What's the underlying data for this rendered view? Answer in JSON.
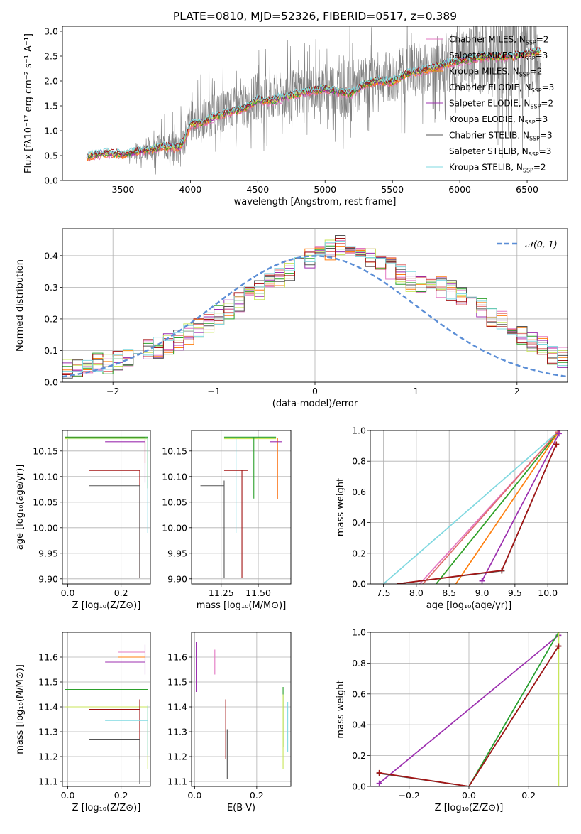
{
  "figure_title": "PLATE=0810, MJD=52326, FIBERID=0517, z=0.389",
  "colors": {
    "Chabrier MILES": "#e377c2",
    "Salpeter MILES": "#e06b6b",
    "Kroupa MILES": "#ff7f0e",
    "Chabrier ELODIE": "#2ca02c",
    "Salpeter ELODIE": "#9c2faf",
    "Kroupa ELODIE": "#c8e65a",
    "Chabrier STELIB": "#555555",
    "Salpeter STELIB": "#a31515",
    "Kroupa STELIB": "#7fd8e0",
    "data": "#808080",
    "normal": "#5b8ed6"
  },
  "chart_data": [
    {
      "id": "spectrum",
      "type": "line",
      "title": "PLATE=0810, MJD=52326, FIBERID=0517, z=0.389",
      "xlabel": "wavelength [Angstrom, rest frame]",
      "ylabel": "Flux [fλ10⁻¹⁷ erg cm⁻² s⁻¹ A⁻¹]",
      "xlim": [
        3050,
        6800
      ],
      "ylim": [
        0,
        3.1
      ],
      "xticks": [
        3500,
        4000,
        4500,
        5000,
        5500,
        6000,
        6500
      ],
      "yticks": [
        0.0,
        0.5,
        1.0,
        1.5,
        2.0,
        2.5,
        3.0
      ],
      "grid": false,
      "legend_position": "top-right",
      "data_series": {
        "name": "data",
        "x": [
          3230,
          3300,
          3400,
          3500,
          3600,
          3700,
          3800,
          3900,
          3950,
          4000,
          4100,
          4200,
          4300,
          4400,
          4500,
          4600,
          4700,
          4800,
          4900,
          5000,
          5100,
          5200,
          5300,
          5400,
          5500,
          5600,
          5700,
          5800,
          5900,
          6000,
          6100,
          6200,
          6300,
          6400,
          6500,
          6600
        ],
        "y": [
          0.45,
          0.52,
          0.55,
          0.5,
          0.6,
          0.62,
          0.7,
          0.65,
          0.8,
          1.2,
          1.25,
          1.35,
          1.45,
          1.5,
          1.7,
          1.65,
          1.7,
          1.8,
          1.85,
          1.9,
          1.85,
          1.8,
          2.0,
          2.1,
          2.05,
          2.2,
          2.25,
          2.3,
          2.4,
          2.45,
          2.5,
          2.55,
          2.5,
          2.55,
          2.6,
          2.65
        ],
        "noise": [
          0.05,
          0.05,
          0.05,
          0.08,
          0.25,
          0.3,
          0.4,
          0.5,
          0.5,
          0.6,
          0.6,
          0.6,
          0.6,
          0.6,
          0.7,
          0.7,
          0.7,
          0.7,
          0.7,
          0.7,
          0.8,
          0.9,
          0.7,
          0.7,
          0.8,
          0.8,
          0.8,
          0.8,
          0.9,
          1.0,
          1.1,
          1.2,
          1.3,
          1.4,
          1.4,
          1.4
        ]
      },
      "model_curve": {
        "x": [
          3230,
          3300,
          3400,
          3500,
          3600,
          3700,
          3800,
          3900,
          3950,
          4000,
          4100,
          4200,
          4300,
          4400,
          4500,
          4600,
          4700,
          4800,
          4900,
          5000,
          5100,
          5200,
          5300,
          5400,
          5500,
          5600,
          5700,
          5800,
          5900,
          6000,
          6100,
          6200,
          6300,
          6400,
          6500,
          6600
        ],
        "y": [
          0.48,
          0.52,
          0.55,
          0.52,
          0.58,
          0.62,
          0.68,
          0.65,
          0.78,
          1.12,
          1.18,
          1.3,
          1.38,
          1.45,
          1.62,
          1.6,
          1.68,
          1.75,
          1.8,
          1.85,
          1.78,
          1.75,
          1.95,
          2.0,
          1.98,
          2.15,
          2.2,
          2.25,
          2.35,
          2.4,
          2.45,
          2.5,
          2.48,
          2.5,
          2.55,
          2.6
        ]
      },
      "legend": [
        {
          "name": "Chabrier MILES, N_SSP=2",
          "model": "Chabrier MILES",
          "base": "Chabrier MILES, N",
          "sub": "SSP",
          "tail": "=2"
        },
        {
          "name": "Salpeter MILES, N_SSP=3",
          "model": "Salpeter MILES",
          "base": "Salpeter MILES, N",
          "sub": "SSP",
          "tail": "=3"
        },
        {
          "name": "Kroupa MILES, N_SSP=2",
          "model": "Kroupa MILES",
          "base": "Kroupa MILES, N",
          "sub": "SSP",
          "tail": "=2"
        },
        {
          "name": "Chabrier ELODIE, N_SSP=3",
          "model": "Chabrier ELODIE",
          "base": "Chabrier ELODIE, N",
          "sub": "SSP",
          "tail": "=3"
        },
        {
          "name": "Salpeter ELODIE, N_SSP=2",
          "model": "Salpeter ELODIE",
          "base": "Salpeter ELODIE, N",
          "sub": "SSP",
          "tail": "=2"
        },
        {
          "name": "Kroupa ELODIE, N_SSP=3",
          "model": "Kroupa ELODIE",
          "base": "Kroupa ELODIE, N",
          "sub": "SSP",
          "tail": "=3"
        },
        {
          "name": "Chabrier STELIB, N_SSP=3",
          "model": "Chabrier STELIB",
          "base": "Chabrier STELIB, N",
          "sub": "SSP",
          "tail": "=3"
        },
        {
          "name": "Salpeter STELIB, N_SSP=3",
          "model": "Salpeter STELIB",
          "base": "Salpeter STELIB, N",
          "sub": "SSP",
          "tail": "=3"
        },
        {
          "name": "Kroupa STELIB, N_SSP=2",
          "model": "Kroupa STELIB",
          "base": "Kroupa STELIB, N",
          "sub": "SSP",
          "tail": "=2"
        }
      ]
    },
    {
      "id": "residuals",
      "type": "line",
      "xlabel": "(data-model)/error",
      "ylabel": "Normed distribution",
      "xlim": [
        -2.5,
        2.5
      ],
      "ylim": [
        0,
        0.485
      ],
      "xticks": [
        -2,
        -1,
        0,
        1,
        2
      ],
      "yticks": [
        0.0,
        0.1,
        0.2,
        0.3,
        0.4
      ],
      "grid": true,
      "legend_position": "top-right",
      "normal_legend": "𝒩(0, 1)",
      "bin_edges_start": -2.5,
      "bin_width": 0.1,
      "histogram_envelope": [
        0.04,
        0.04,
        0.05,
        0.06,
        0.06,
        0.07,
        0.08,
        0.09,
        0.1,
        0.11,
        0.12,
        0.13,
        0.15,
        0.17,
        0.19,
        0.21,
        0.23,
        0.25,
        0.27,
        0.29,
        0.31,
        0.33,
        0.35,
        0.37,
        0.39,
        0.41,
        0.42,
        0.43,
        0.42,
        0.41,
        0.4,
        0.38,
        0.36,
        0.34,
        0.32,
        0.31,
        0.3,
        0.3,
        0.29,
        0.27,
        0.25,
        0.23,
        0.21,
        0.19,
        0.17,
        0.15,
        0.13,
        0.11,
        0.09,
        0.08
      ]
    },
    {
      "id": "age-vs-Z",
      "type": "scatter",
      "xlabel": "Z [log₁₀(Z/Z⊙)]",
      "ylabel": "age  [log₁₀(age/yr)]",
      "xlim": [
        -0.02,
        0.31
      ],
      "ylim": [
        9.89,
        10.19
      ],
      "xticks": [
        0.0,
        0.2
      ],
      "yticks": [
        9.9,
        9.95,
        10.0,
        10.05,
        10.1,
        10.15
      ],
      "grid": true,
      "points": [
        {
          "model": "Chabrier MILES",
          "x": 0.29,
          "y": 10.176,
          "xerr": [
            0.3,
            0.0
          ],
          "yerr": [
            0.05,
            0.0
          ]
        },
        {
          "model": "Kroupa MILES",
          "x": 0.29,
          "y": 10.176,
          "xerr": [
            0.3,
            0.0
          ],
          "yerr": [
            0.05,
            0.0
          ]
        },
        {
          "model": "Chabrier ELODIE",
          "x": 0.3,
          "y": 10.177,
          "xerr": [
            0.31,
            0.0
          ],
          "yerr": [
            0.1,
            0.0
          ]
        },
        {
          "model": "Kroupa ELODIE",
          "x": 0.3,
          "y": 10.174,
          "xerr": [
            0.31,
            0.0
          ],
          "yerr": [
            0.08,
            0.0
          ]
        },
        {
          "model": "Salpeter ELODIE",
          "x": 0.29,
          "y": 10.168,
          "xerr": [
            0.15,
            0.0
          ],
          "yerr": [
            0.08,
            0.0
          ]
        },
        {
          "model": "Kroupa STELIB",
          "x": 0.3,
          "y": 10.175,
          "xerr": [
            0.3,
            0.0
          ],
          "yerr": [
            0.185,
            0.0
          ]
        },
        {
          "model": "Salpeter STELIB",
          "x": 0.27,
          "y": 10.112,
          "xerr": [
            0.19,
            0.0
          ],
          "yerr": [
            0.21,
            0.0
          ]
        },
        {
          "model": "Chabrier STELIB",
          "x": 0.27,
          "y": 10.082,
          "xerr": [
            0.19,
            0.0
          ],
          "yerr": [
            0.18,
            0.0
          ]
        }
      ]
    },
    {
      "id": "age-vs-mass",
      "type": "scatter",
      "xlabel": "mass [log₁₀(M/M⊙)]",
      "ylabel": "",
      "xlim": [
        11.05,
        11.72
      ],
      "ylim": [
        9.89,
        10.19
      ],
      "xticks": [
        11.25,
        11.5
      ],
      "yticks": [
        9.9,
        9.95,
        10.0,
        10.05,
        10.1,
        10.15
      ],
      "grid": true,
      "points": [
        {
          "model": "Kroupa ELODIE",
          "x": 11.62,
          "y": 10.174,
          "xerr": [
            0.35,
            0.0
          ],
          "yerr": [
            0.0,
            0.0
          ]
        },
        {
          "model": "Chabrier ELODIE",
          "x": 11.47,
          "y": 10.177,
          "xerr": [
            0.2,
            0.15
          ],
          "yerr": [
            0.12,
            0.0
          ]
        },
        {
          "model": "Chabrier MILES",
          "x": 11.63,
          "y": 10.176,
          "xerr": [
            0.0,
            0.0
          ],
          "yerr": [
            0.12,
            0.0
          ]
        },
        {
          "model": "Kroupa MILES",
          "x": 11.63,
          "y": 10.176,
          "xerr": [
            0.0,
            0.0
          ],
          "yerr": [
            0.12,
            0.0
          ]
        },
        {
          "model": "Salpeter ELODIE",
          "x": 11.58,
          "y": 10.168,
          "xerr": [
            0.0,
            0.08
          ],
          "yerr": [
            0.0,
            0.0
          ]
        },
        {
          "model": "Kroupa STELIB",
          "x": 11.35,
          "y": 10.175,
          "xerr": [
            0.0,
            0.0
          ],
          "yerr": [
            0.185,
            0.0
          ]
        },
        {
          "model": "Salpeter STELIB",
          "x": 11.39,
          "y": 10.112,
          "xerr": [
            0.12,
            0.04
          ],
          "yerr": [
            0.21,
            0.0
          ]
        },
        {
          "model": "Chabrier STELIB",
          "x": 11.27,
          "y": 10.082,
          "xerr": [
            0.16,
            0.0
          ],
          "yerr": [
            0.18,
            0.01
          ]
        }
      ]
    },
    {
      "id": "weight-vs-age",
      "type": "line",
      "xlabel": "age  [log₁₀(age/yr)]",
      "ylabel": "mass weight",
      "xlim": [
        7.3,
        10.3
      ],
      "ylim": [
        0,
        1.0
      ],
      "xticks": [
        7.5,
        8.0,
        8.5,
        9.0,
        9.5,
        10.0
      ],
      "yticks": [
        0.0,
        0.2,
        0.4,
        0.6,
        0.8,
        1.0
      ],
      "grid": true,
      "series": [
        {
          "model": "Kroupa STELIB",
          "x": [
            7.5,
            10.18
          ],
          "y": [
            0.0,
            1.0
          ],
          "marker": false
        },
        {
          "model": "Chabrier MILES",
          "x": [
            8.05,
            10.18
          ],
          "y": [
            0.0,
            1.0
          ],
          "marker": false
        },
        {
          "model": "Salpeter MILES",
          "x": [
            8.1,
            10.15
          ],
          "y": [
            0.0,
            0.99
          ],
          "marker": true
        },
        {
          "model": "Kroupa ELODIE",
          "x": [
            8.3,
            10.18
          ],
          "y": [
            0.0,
            1.0
          ],
          "marker": false
        },
        {
          "model": "Chabrier ELODIE",
          "x": [
            8.3,
            10.18
          ],
          "y": [
            0.0,
            1.0
          ],
          "marker": false
        },
        {
          "model": "Kroupa MILES",
          "x": [
            8.6,
            10.18
          ],
          "y": [
            0.0,
            1.0
          ],
          "marker": false
        },
        {
          "model": "Salpeter ELODIE",
          "x": [
            9.0,
            10.17
          ],
          "y": [
            0.02,
            0.98
          ],
          "marker": true
        },
        {
          "model": "Chabrier STELIB",
          "x": [
            7.7,
            9.3,
            10.13
          ],
          "y": [
            0.0,
            0.085,
            0.91
          ],
          "marker": true
        },
        {
          "model": "Salpeter STELIB",
          "x": [
            7.7,
            9.3,
            10.13
          ],
          "y": [
            0.0,
            0.088,
            0.91
          ],
          "marker": true
        }
      ]
    },
    {
      "id": "mass-vs-Z",
      "type": "scatter",
      "xlabel": "Z [log₁₀(Z/Z⊙)]",
      "ylabel": "mass [log₁₀(M/M⊙)]",
      "xlim": [
        -0.02,
        0.31
      ],
      "ylim": [
        11.08,
        11.7
      ],
      "xticks": [
        0.0,
        0.2
      ],
      "yticks": [
        11.1,
        11.2,
        11.3,
        11.4,
        11.5,
        11.6
      ],
      "grid": true,
      "points": [
        {
          "model": "Salpeter ELODIE",
          "x": 0.29,
          "y": 11.58,
          "xerr": [
            0.15,
            0.0
          ],
          "yerr": [
            0.05,
            0.07
          ]
        },
        {
          "model": "Kroupa MILES",
          "x": 0.29,
          "y": 11.6,
          "xerr": [
            0.1,
            0.0
          ],
          "yerr": [
            0.0,
            0.0
          ]
        },
        {
          "model": "Chabrier MILES",
          "x": 0.29,
          "y": 11.62,
          "xerr": [
            0.1,
            0.0
          ],
          "yerr": [
            0.0,
            0.0
          ]
        },
        {
          "model": "Chabrier ELODIE",
          "x": 0.3,
          "y": 11.47,
          "xerr": [
            0.31,
            0.0
          ],
          "yerr": [
            0.0,
            0.0
          ]
        },
        {
          "model": "Kroupa ELODIE",
          "x": 0.3,
          "y": 11.4,
          "xerr": [
            0.31,
            0.0
          ],
          "yerr": [
            0.25,
            0.0
          ]
        },
        {
          "model": "Salpeter STELIB",
          "x": 0.27,
          "y": 11.39,
          "xerr": [
            0.19,
            0.0
          ],
          "yerr": [
            0.2,
            0.04
          ]
        },
        {
          "model": "Kroupa STELIB",
          "x": 0.3,
          "y": 11.345,
          "xerr": [
            0.16,
            0.0
          ],
          "yerr": [
            0.14,
            0.06
          ]
        },
        {
          "model": "Chabrier STELIB",
          "x": 0.27,
          "y": 11.27,
          "xerr": [
            0.19,
            0.0
          ],
          "yerr": [
            0.18,
            0.0
          ]
        }
      ]
    },
    {
      "id": "mass-vs-EBV",
      "type": "scatter",
      "xlabel": "E(B-V)",
      "ylabel": "",
      "xlim": [
        -0.01,
        0.31
      ],
      "ylim": [
        11.08,
        11.7
      ],
      "xticks": [
        0.0,
        0.2
      ],
      "yticks": [
        11.1,
        11.2,
        11.3,
        11.4,
        11.5,
        11.6
      ],
      "grid": true,
      "points": [
        {
          "model": "Salpeter ELODIE",
          "x": 0.005,
          "y": 11.56,
          "yerr": [
            0.1,
            0.1
          ]
        },
        {
          "model": "Chabrier MILES",
          "x": 0.065,
          "y": 11.58,
          "yerr": [
            0.05,
            0.05
          ]
        },
        {
          "model": "Salpeter STELIB",
          "x": 0.1,
          "y": 11.31,
          "yerr": [
            0.12,
            0.12
          ]
        },
        {
          "model": "Chabrier STELIB",
          "x": 0.105,
          "y": 11.21,
          "yerr": [
            0.1,
            0.1
          ]
        },
        {
          "model": "Chabrier ELODIE",
          "x": 0.285,
          "y": 11.36,
          "yerr": [
            0.12,
            0.12
          ]
        },
        {
          "model": "Kroupa ELODIE",
          "x": 0.285,
          "y": 11.3,
          "yerr": [
            0.15,
            0.15
          ]
        },
        {
          "model": "Kroupa STELIB",
          "x": 0.3,
          "y": 11.32,
          "yerr": [
            0.1,
            0.1
          ]
        }
      ]
    },
    {
      "id": "weight-vs-Z",
      "type": "line",
      "xlabel": "Z [log₁₀(Z/Z⊙)]",
      "ylabel": "mass weight",
      "xlim": [
        -0.33,
        0.33
      ],
      "ylim": [
        0,
        1.0
      ],
      "xticks": [
        -0.2,
        0.0,
        0.2
      ],
      "yticks": [
        0.0,
        0.2,
        0.4,
        0.6,
        0.8,
        1.0
      ],
      "grid": true,
      "series": [
        {
          "model": "Salpeter ELODIE",
          "x": [
            -0.3,
            0.3
          ],
          "y": [
            0.02,
            0.98
          ],
          "marker": true
        },
        {
          "model": "Kroupa STELIB",
          "x": [
            0.0,
            0.3
          ],
          "y": [
            0.0,
            1.0
          ],
          "marker": false
        },
        {
          "model": "Chabrier ELODIE",
          "x": [
            0.0,
            0.3
          ],
          "y": [
            0.0,
            1.0
          ],
          "marker": false
        },
        {
          "model": "Kroupa ELODIE",
          "x": [
            0.3,
            0.3
          ],
          "y": [
            0.0,
            1.0
          ],
          "marker": false
        },
        {
          "model": "Chabrier STELIB",
          "x": [
            -0.3,
            0.0,
            0.3
          ],
          "y": [
            0.085,
            0.0,
            0.91
          ],
          "marker": true
        },
        {
          "model": "Salpeter STELIB",
          "x": [
            -0.3,
            0.0,
            0.3
          ],
          "y": [
            0.088,
            0.0,
            0.91
          ],
          "marker": true
        }
      ]
    }
  ]
}
